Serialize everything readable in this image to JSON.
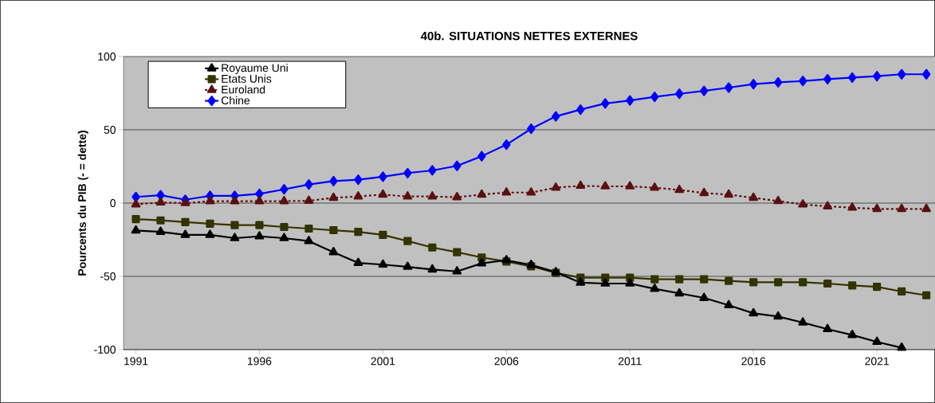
{
  "chart_data": {
    "type": "line",
    "title": "40b. SITUATIONS NETTES EXTERNES",
    "ylabel": "Pourcents du PIB (- = dette)",
    "x": [
      1991,
      1992,
      1993,
      1994,
      1995,
      1996,
      1997,
      1998,
      1999,
      2000,
      2001,
      2002,
      2003,
      2004,
      2005,
      2006,
      2007,
      2008,
      2009,
      2010,
      2011,
      2012,
      2013,
      2014,
      2015,
      2016,
      2017,
      2018,
      2019,
      2020,
      2021,
      2022,
      2023
    ],
    "xlim": [
      1990.5,
      2023.35
    ],
    "xticks": [
      1991,
      1996,
      2001,
      2006,
      2011,
      2016,
      2021
    ],
    "ylim": [
      -100,
      100
    ],
    "yticks": [
      -100,
      -50,
      0,
      50,
      100
    ],
    "grid": "y",
    "legend": "top left",
    "series": [
      {
        "name": "Royaume Uni",
        "color": "#000000",
        "marker": "triangle",
        "line_style": "solid",
        "values": [
          -18.7,
          -19.6,
          -21.7,
          -21.7,
          -23.9,
          -22.7,
          -23.9,
          -25.9,
          -33.5,
          -40.8,
          -42,
          -43.5,
          -45.3,
          -46.6,
          -41.1,
          -39,
          -42.2,
          -47.1,
          -54.3,
          -54.9,
          -54.9,
          -58.5,
          -61.6,
          -64.7,
          -69.7,
          -75.2,
          -77.4,
          -81.5,
          -86,
          -90,
          -94.7,
          -98.7,
          null
        ]
      },
      {
        "name": "Etats Unis",
        "color": "#333300",
        "marker": "square",
        "line_style": "solid",
        "values": [
          -10.9,
          -11.8,
          -13,
          -14.1,
          -15,
          -15,
          -16.3,
          -17.4,
          -18.5,
          -19.6,
          -21.7,
          -25.9,
          -30.3,
          -33.5,
          -37.1,
          -39.9,
          -43.1,
          -47.6,
          -50.9,
          -50.9,
          -50.9,
          -52,
          -52,
          -52,
          -53.1,
          -54,
          -54,
          -54,
          -54.9,
          -56.2,
          -57.1,
          -60.3,
          -62.9
        ]
      },
      {
        "name": "Euroland",
        "color": "#5a1010",
        "marker": "triangle",
        "line_style": "dashed",
        "values": [
          -0.9,
          0.4,
          0,
          1.3,
          1.3,
          1.3,
          1.3,
          1.6,
          3.6,
          4.5,
          5.8,
          4.5,
          4.5,
          4,
          5.8,
          7.2,
          7.2,
          10.5,
          11.8,
          11.4,
          11.4,
          10.5,
          9,
          6.9,
          5.8,
          3.6,
          1.4,
          -0.9,
          -2.2,
          -3.1,
          -4,
          -4,
          -4
        ]
      },
      {
        "name": "Chine",
        "color": "#0000ff",
        "marker": "diamond",
        "line_style": "solid",
        "values": [
          4.2,
          5.4,
          2.3,
          5,
          5,
          6.3,
          9.4,
          12.7,
          15,
          16,
          18,
          20.5,
          22.3,
          25.4,
          32,
          39.9,
          50.7,
          59.2,
          63.8,
          68,
          70,
          72.5,
          74.6,
          76.6,
          78.8,
          81.2,
          82.4,
          83.3,
          84.6,
          85.7,
          86.6,
          87.9,
          87.9
        ]
      }
    ]
  }
}
